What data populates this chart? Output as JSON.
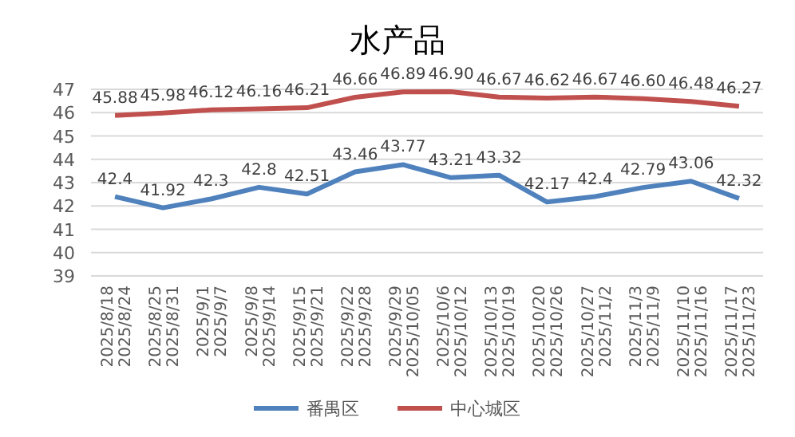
{
  "chart_data": {
    "type": "line",
    "title": "水产品",
    "categories": [
      "2025/8/18\n2025/8/24",
      "2025/8/25\n2025/8/31",
      "2025/9/1\n2025/9/7",
      "2025/9/8\n2025/9/14",
      "2025/9/15\n2025/9/21",
      "2025/9/22\n2025/9/28",
      "2025/9/29\n2025/10/05",
      "2025/10/6\n2025/10/12",
      "2025/10/13\n2025/10/19",
      "2025/10/20\n2025/10/26",
      "2025/10/27\n2025/11/2",
      "2025/11/3\n2025/11/9",
      "2025/11/10\n2025/11/16",
      "2025/11/17\n2025/11/23"
    ],
    "series": [
      {
        "name": "番禺区",
        "color": "#4f81bd",
        "values": [
          42.4,
          41.92,
          42.3,
          42.8,
          42.51,
          43.46,
          43.77,
          43.21,
          43.32,
          42.17,
          42.4,
          42.79,
          43.06,
          42.32
        ],
        "value_labels": [
          "42.4",
          "41.92",
          "42.3",
          "42.8",
          "42.51",
          "43.46",
          "43.77",
          "43.21",
          "43.32",
          "42.17",
          "42.4",
          "42.79",
          "43.06",
          "42.32"
        ]
      },
      {
        "name": "中心城区",
        "color": "#c0504d",
        "values": [
          45.88,
          45.98,
          46.12,
          46.16,
          46.21,
          46.66,
          46.89,
          46.9,
          46.67,
          46.62,
          46.67,
          46.6,
          46.48,
          46.27
        ],
        "value_labels": [
          "45.88",
          "45.98",
          "46.12",
          "46.16",
          "46.21",
          "46.66",
          "46.89",
          "46.90",
          "46.67",
          "46.62",
          "46.67",
          "46.60",
          "46.48",
          "46.27"
        ]
      }
    ],
    "ylim": [
      39,
      47
    ],
    "yticks": [
      39,
      40,
      41,
      42,
      43,
      44,
      45,
      46,
      47
    ],
    "grid": "y",
    "legend": "bottom",
    "marker": "none",
    "line_style": "solid"
  }
}
